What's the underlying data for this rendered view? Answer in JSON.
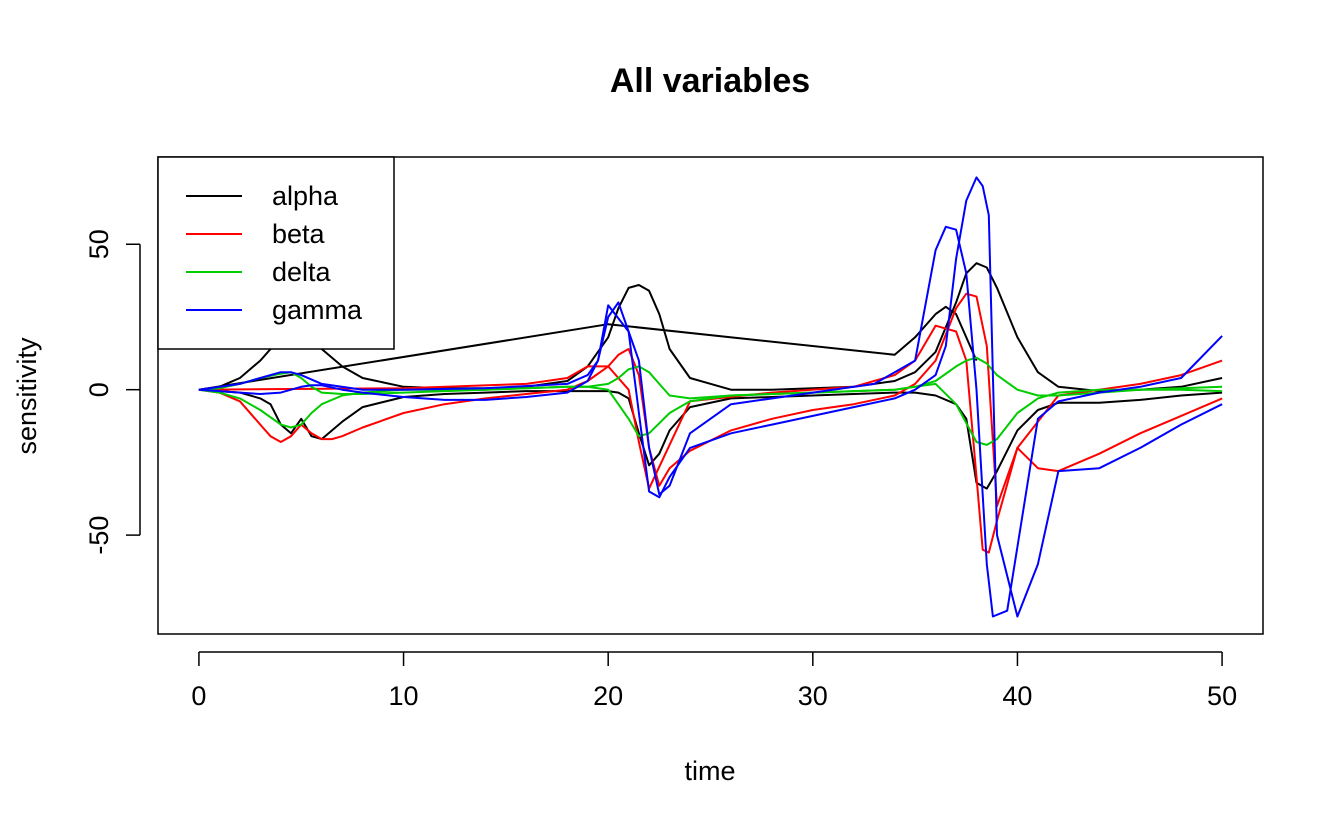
{
  "chart_data": {
    "type": "line",
    "title": "All variables",
    "xlabel": "time",
    "ylabel": "sensitivity",
    "xlim": [
      -2,
      52
    ],
    "ylim": [
      -84,
      80
    ],
    "xticks": [
      0,
      10,
      20,
      30,
      40,
      50
    ],
    "yticks": [
      -50,
      0,
      50
    ],
    "grid": false,
    "legend_position": "top-left",
    "series": [
      {
        "name": "alpha",
        "color": "#000000",
        "x": [
          0,
          2,
          3,
          3.5,
          4,
          4.5,
          5,
          5.5,
          6,
          7,
          8,
          10,
          12,
          14,
          16,
          18,
          19,
          20,
          20.5,
          21,
          21.5,
          22,
          22.5,
          23,
          24,
          26,
          28,
          30,
          32,
          34,
          35,
          36,
          37,
          37.5,
          38,
          38.5,
          39,
          40,
          41,
          42,
          44,
          46,
          48,
          50
        ],
        "y": [
          0,
          -1,
          -3,
          -5,
          -12,
          -15,
          -10,
          -16,
          -17,
          -11,
          -6,
          -2.5,
          -1.5,
          -1,
          -0.5,
          -0.5,
          -0.5,
          -0.5,
          -1,
          -3,
          -15,
          -26,
          -22,
          -14,
          -6,
          -3,
          -2.5,
          -2,
          -1.5,
          -1,
          -1,
          -2,
          -5,
          -10,
          -32,
          -34,
          -28,
          -14,
          -7,
          -4.5,
          -4.5,
          -3.5,
          -2,
          -1
        ]
      },
      {
        "name": "alpha",
        "color": "#000000",
        "x": [
          0,
          1,
          2,
          3,
          4,
          4.5,
          5,
          5.5,
          6,
          7,
          8,
          10,
          12,
          14,
          16,
          18,
          19,
          20,
          20.5,
          21,
          21.5,
          22,
          22.5,
          23,
          24,
          26,
          28,
          30,
          32,
          34,
          35,
          36,
          37,
          37.5,
          38,
          38.5,
          39,
          40,
          41,
          42,
          44,
          46,
          48,
          50
        ],
        "y": [
          0,
          1,
          4,
          10,
          18,
          21,
          20,
          17,
          14,
          8,
          4,
          1,
          0.5,
          0.5,
          1,
          3,
          8,
          18,
          28,
          35,
          36,
          34,
          26,
          14,
          4,
          0,
          0,
          0.5,
          1,
          3,
          6,
          13,
          30,
          40,
          43.5,
          42,
          35,
          18,
          6,
          1,
          -0.5,
          0,
          1,
          4
        ]
      },
      {
        "name": "alpha",
        "color": "#000000",
        "x": [
          0,
          20,
          34,
          35,
          36,
          36.5,
          37,
          38
        ],
        "y": [
          0,
          22.5,
          12,
          18,
          26,
          28.5,
          26,
          10
        ]
      },
      {
        "name": "beta",
        "color": "#ff0000",
        "x": [
          0,
          1,
          2,
          3,
          3.5,
          4,
          4.5,
          5,
          5.5,
          6,
          6.5,
          7,
          8,
          10,
          12,
          14,
          16,
          18,
          19,
          20,
          20.5,
          21,
          21.5,
          22,
          22.5,
          23,
          24,
          26,
          28,
          30,
          32,
          34,
          35,
          36,
          37,
          37.5,
          38,
          38.5,
          39,
          40,
          41,
          42,
          44,
          46,
          48,
          50
        ],
        "y": [
          0,
          -1,
          -4,
          -12,
          -16,
          -18,
          -16,
          -12,
          -15,
          -17,
          -17,
          -16,
          -13,
          -8,
          -5,
          -3,
          -1.5,
          0,
          3,
          8,
          12,
          14,
          5,
          -20,
          -33,
          -27,
          -21,
          -14,
          -10,
          -7,
          -5,
          -2,
          2,
          10,
          28,
          33,
          32,
          15,
          -40,
          -20,
          -27,
          -28,
          -22,
          -15,
          -9,
          -3
        ]
      },
      {
        "name": "beta",
        "color": "#ff0000",
        "x": [
          0,
          10,
          16,
          18,
          19,
          20,
          21,
          21.5,
          22,
          24,
          28,
          32,
          34,
          35,
          36,
          37,
          37.5,
          38,
          38.3,
          38.6,
          39,
          40,
          42,
          44,
          46,
          48,
          50
        ],
        "y": [
          0,
          0.5,
          2,
          4,
          8,
          8,
          0,
          -18,
          -34,
          -4,
          -1,
          1,
          5,
          10,
          22,
          20,
          10,
          -30,
          -55,
          -56,
          -45,
          -20,
          -2,
          0,
          2,
          5,
          10
        ]
      },
      {
        "name": "delta",
        "color": "#00cc00",
        "x": [
          0,
          1,
          2,
          3,
          4,
          4.5,
          5,
          5.5,
          6,
          7,
          8,
          10,
          12,
          14,
          16,
          18,
          19,
          20,
          20.5,
          21,
          21.5,
          22,
          22.5,
          23,
          24,
          26,
          28,
          30,
          32,
          34,
          35,
          36,
          37,
          37.5,
          38,
          38.5,
          39,
          40,
          41,
          42,
          44,
          46,
          48,
          50
        ],
        "y": [
          0,
          0.5,
          2,
          4,
          5.5,
          6,
          4,
          1,
          -1,
          -1.5,
          -1.5,
          -1,
          -0.5,
          0,
          0.5,
          1,
          1,
          2,
          4,
          7,
          8,
          6,
          2,
          -2,
          -3,
          -2,
          -1.5,
          -1,
          -0.5,
          0,
          1,
          3,
          8,
          10,
          11,
          9,
          5,
          0,
          -2,
          -2,
          -1,
          0,
          0.5,
          1
        ]
      },
      {
        "name": "delta",
        "color": "#00cc00",
        "x": [
          0,
          1,
          2,
          3,
          4,
          4.5,
          5,
          5.5,
          6,
          7,
          8,
          10,
          14,
          18,
          19,
          20,
          21,
          21.5,
          22,
          23,
          24,
          26,
          30,
          34,
          35,
          36,
          37,
          38,
          38.5,
          39,
          40,
          41,
          42,
          44,
          48,
          50
        ],
        "y": [
          0,
          -1,
          -3,
          -7,
          -12,
          -13,
          -12,
          -8,
          -5,
          -2,
          -1,
          0,
          0,
          1,
          1,
          0,
          -10,
          -16,
          -15,
          -8,
          -4,
          -2,
          -1,
          0,
          1,
          2,
          -5,
          -18,
          -19,
          -17,
          -8,
          -3,
          -1,
          0,
          0,
          -0.5
        ]
      },
      {
        "name": "gamma",
        "color": "#0000ff",
        "x": [
          0,
          1,
          2,
          3,
          4,
          4.5,
          5,
          5.5,
          6,
          7,
          8,
          10,
          12,
          14,
          16,
          18,
          19,
          19.5,
          20,
          20.5,
          21,
          21.5,
          22,
          22.5,
          23,
          24,
          26,
          28,
          30,
          32,
          34,
          35,
          36,
          36.5,
          37,
          37.5,
          38,
          38.3,
          38.6,
          39,
          40,
          41,
          42,
          44,
          46,
          48,
          50
        ],
        "y": [
          0,
          -0.5,
          -1,
          -1.5,
          -1,
          0,
          1,
          1.5,
          1.5,
          0,
          -1,
          -2.5,
          -3.5,
          -3.5,
          -2.5,
          -1,
          3,
          10,
          25,
          30,
          20,
          -8,
          -35,
          -37,
          -30,
          -20,
          -15,
          -12,
          -9,
          -6,
          -3,
          0,
          5,
          15,
          45,
          65,
          73,
          70,
          60,
          -50,
          -78,
          -60,
          -28,
          -27,
          -20,
          -12,
          -5
        ]
      },
      {
        "name": "gamma",
        "color": "#0000ff",
        "x": [
          0,
          2,
          3,
          4,
          4.5,
          5,
          6,
          8,
          10,
          14,
          18,
          19,
          19.5,
          20,
          21,
          21.5,
          22,
          22.5,
          23,
          24,
          26,
          30,
          33,
          35,
          36,
          36.5,
          37,
          37.5,
          38,
          38.5,
          38.8,
          39.5,
          41,
          42,
          44,
          46,
          48,
          50
        ],
        "y": [
          0,
          2,
          4,
          6,
          6,
          5,
          2,
          0,
          0,
          0.5,
          2,
          5,
          10,
          29,
          20,
          10,
          -20,
          -36,
          -33,
          -15,
          -5,
          -1,
          2,
          10,
          48,
          56,
          55,
          40,
          0,
          -60,
          -78,
          -76,
          -10,
          -4,
          -1,
          1,
          4,
          18.5
        ]
      }
    ]
  }
}
